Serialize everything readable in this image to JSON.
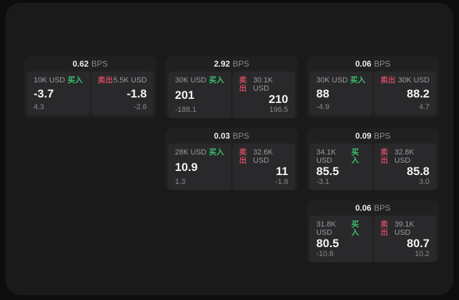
{
  "labels": {
    "bps_unit": "BPS",
    "buy": "买入",
    "sell": "卖出"
  },
  "colors": {
    "buy_green": "#3cc06e",
    "sell_red": "#c84a5e",
    "page_background": "#0d0d0e",
    "window_background": "#1a1a1b",
    "card_background": "#202021",
    "panel_background": "#29292b"
  },
  "cards": [
    {
      "bps": "0.62",
      "buy_size": "10K USD",
      "buy_price": "-3.7",
      "buy_sub": "4.3",
      "sell_size": "5.5K USD",
      "sell_price": "-1.8",
      "sell_sub": "-2.6"
    },
    {
      "bps": "2.92",
      "buy_size": "30K USD",
      "buy_price": "201",
      "buy_sub": "-188.1",
      "sell_size": "30.1K USD",
      "sell_price": "210",
      "sell_sub": "196.5"
    },
    {
      "bps": "0.03",
      "buy_size": "28K USD",
      "buy_price": "10.9",
      "buy_sub": "1.3",
      "sell_size": "32.6K USD",
      "sell_price": "11",
      "sell_sub": "-1.8"
    },
    {
      "bps": "0.06",
      "buy_size": "30K USD",
      "buy_price": "88",
      "buy_sub": "-4.9",
      "sell_size": "30K USD",
      "sell_price": "88.2",
      "sell_sub": "4.7"
    },
    {
      "bps": "0.09",
      "buy_size": "34.1K USD",
      "buy_price": "85.5",
      "buy_sub": "-3.1",
      "sell_size": "32.8K USD",
      "sell_price": "85.8",
      "sell_sub": "3.0"
    },
    {
      "bps": "0.06",
      "buy_size": "31.8K USD",
      "buy_price": "80.5",
      "buy_sub": "-10.8",
      "sell_size": "39.1K USD",
      "sell_price": "80.7",
      "sell_sub": "10.2"
    }
  ]
}
